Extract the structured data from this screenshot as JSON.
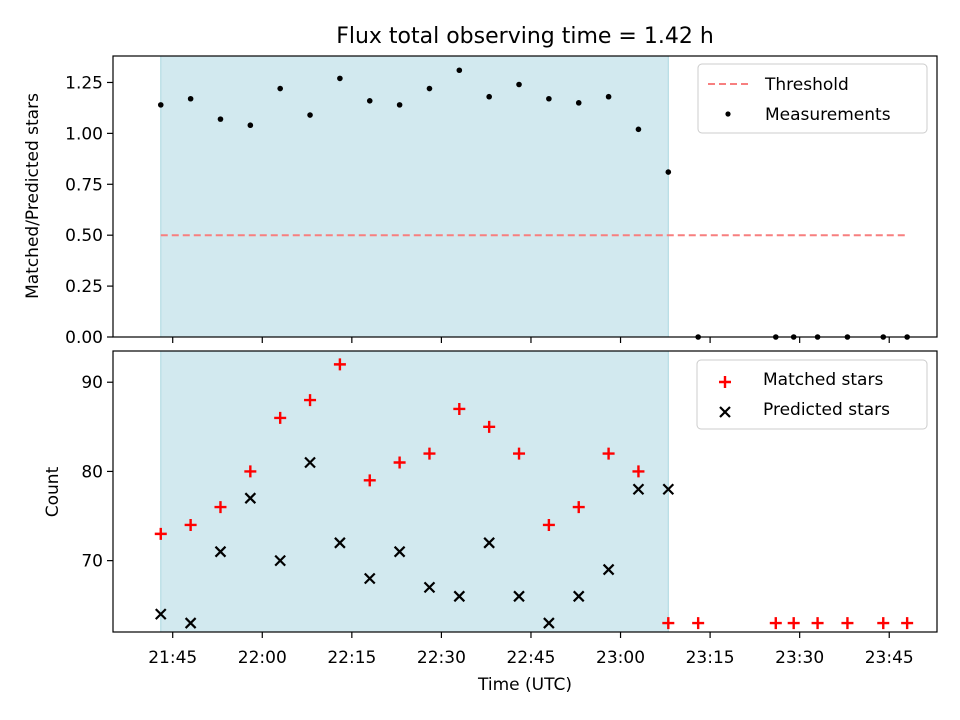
{
  "figure": {
    "title": "Flux total observing time = 1.42 h"
  },
  "chart_data": [
    {
      "type": "scatter",
      "panel": "top",
      "xlabel": "",
      "ylabel": "Matched/Predicted stars",
      "ylim": [
        0,
        1.38
      ],
      "yticks": [
        "0.00",
        "0.25",
        "0.50",
        "0.75",
        "1.00",
        "1.25"
      ],
      "grid": false,
      "legend_placement": "top-right",
      "shaded_region": {
        "start": "21:43",
        "end": "23:08",
        "color": "#d2e9ef"
      },
      "threshold": {
        "name": "Threshold",
        "value": 0.5,
        "x_start": "21:43",
        "x_end": "23:48",
        "color": "#f77f7f"
      },
      "series": [
        {
          "name": "Measurements",
          "color": "#000000",
          "x": [
            "21:43",
            "21:48",
            "21:53",
            "21:58",
            "22:03",
            "22:08",
            "22:13",
            "22:18",
            "22:23",
            "22:28",
            "22:33",
            "22:38",
            "22:43",
            "22:48",
            "22:53",
            "22:58",
            "23:03",
            "23:08",
            "23:13",
            "23:26",
            "23:29",
            "23:33",
            "23:38",
            "23:44",
            "23:48"
          ],
          "y": [
            1.14,
            1.17,
            1.07,
            1.04,
            1.22,
            1.09,
            1.27,
            1.16,
            1.14,
            1.22,
            1.31,
            1.18,
            1.24,
            1.17,
            1.15,
            1.18,
            1.02,
            0.81,
            0,
            0,
            0,
            0,
            0,
            0,
            0
          ]
        }
      ]
    },
    {
      "type": "scatter",
      "panel": "bottom",
      "xlabel": "Time (UTC)",
      "ylabel": "Count",
      "ylim": [
        62,
        93.5
      ],
      "yticks": [
        "70",
        "80",
        "90"
      ],
      "xticks": [
        "21:45",
        "22:00",
        "22:15",
        "22:30",
        "22:45",
        "23:00",
        "23:15",
        "23:30",
        "23:45"
      ],
      "grid": false,
      "legend_placement": "top-right",
      "shaded_region": {
        "start": "21:43",
        "end": "23:08",
        "color": "#d2e9ef"
      },
      "series": [
        {
          "name": "Matched stars",
          "marker": "plus",
          "color": "#ff0000",
          "x": [
            "21:43",
            "21:48",
            "21:53",
            "21:58",
            "22:03",
            "22:08",
            "22:13",
            "22:18",
            "22:23",
            "22:28",
            "22:33",
            "22:38",
            "22:43",
            "22:48",
            "22:53",
            "22:58",
            "23:03",
            "23:08",
            "23:13",
            "23:26",
            "23:29",
            "23:33",
            "23:38",
            "23:44",
            "23:48"
          ],
          "y": [
            73,
            74,
            76,
            80,
            86,
            88,
            92,
            79,
            81,
            82,
            87,
            85,
            82,
            74,
            76,
            82,
            80,
            63,
            63,
            63,
            63,
            63,
            63,
            63,
            63
          ]
        },
        {
          "name": "Predicted stars",
          "marker": "x",
          "color": "#000000",
          "x": [
            "21:43",
            "21:48",
            "21:53",
            "21:58",
            "22:03",
            "22:08",
            "22:13",
            "22:18",
            "22:23",
            "22:28",
            "22:33",
            "22:38",
            "22:43",
            "22:48",
            "22:53",
            "22:58",
            "23:03",
            "23:08"
          ],
          "y": [
            64,
            63,
            71,
            77,
            70,
            81,
            72,
            68,
            71,
            67,
            66,
            72,
            66,
            63,
            66,
            69,
            78,
            78
          ]
        }
      ]
    }
  ]
}
